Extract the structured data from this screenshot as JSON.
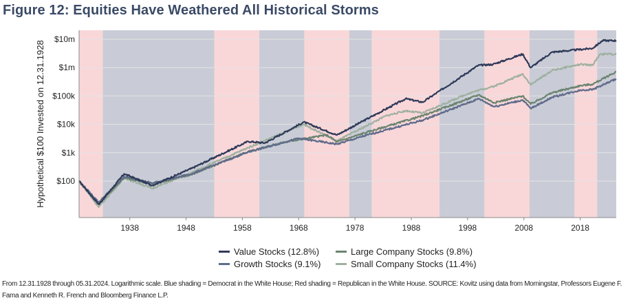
{
  "title": "Figure 12: Equities Have Weathered All Historical Storms",
  "chart_data": {
    "type": "line",
    "ylabel": "Hypothetical $100 Invested on 12.31.1928",
    "xlabel": "",
    "yscale": "log",
    "xlim": [
      1929.0,
      2024.4
    ],
    "ylim": [
      10,
      20000000
    ],
    "x_ticks": [
      1938,
      1948,
      1958,
      1968,
      1978,
      1988,
      1998,
      2008,
      2018
    ],
    "y_ticks": [
      {
        "value": 100,
        "label": "$100"
      },
      {
        "value": 1000,
        "label": "$1k"
      },
      {
        "value": 10000,
        "label": "$10k"
      },
      {
        "value": 100000,
        "label": "$100k"
      },
      {
        "value": 1000000,
        "label": "$1m"
      },
      {
        "value": 10000000,
        "label": "$10m"
      }
    ],
    "shading": [
      {
        "start": 1929.0,
        "end": 1933.2,
        "party": "Republican"
      },
      {
        "start": 1933.2,
        "end": 1953.0,
        "party": "Democrat"
      },
      {
        "start": 1953.0,
        "end": 1961.0,
        "party": "Republican"
      },
      {
        "start": 1961.0,
        "end": 1969.0,
        "party": "Democrat"
      },
      {
        "start": 1969.0,
        "end": 1977.0,
        "party": "Republican"
      },
      {
        "start": 1977.0,
        "end": 1981.0,
        "party": "Democrat"
      },
      {
        "start": 1981.0,
        "end": 1993.0,
        "party": "Republican"
      },
      {
        "start": 1993.0,
        "end": 2001.0,
        "party": "Democrat"
      },
      {
        "start": 2001.0,
        "end": 2009.0,
        "party": "Republican"
      },
      {
        "start": 2009.0,
        "end": 2017.0,
        "party": "Democrat"
      },
      {
        "start": 2017.0,
        "end": 2021.0,
        "party": "Republican"
      },
      {
        "start": 2021.0,
        "end": 2024.4,
        "party": "Democrat"
      }
    ],
    "colors": {
      "republican": "#f9d7d9",
      "democrat": "#c9ccd6",
      "grid": "#e3e3e3",
      "axis": "#888888"
    },
    "series": [
      {
        "name": "Value Stocks (12.8%)",
        "color": "#2f3a59",
        "points": [
          [
            1929,
            100
          ],
          [
            1932.5,
            15
          ],
          [
            1937,
            180
          ],
          [
            1942,
            70
          ],
          [
            1949,
            280
          ],
          [
            1959,
            2500
          ],
          [
            1962,
            2200
          ],
          [
            1968.9,
            12000
          ],
          [
            1974.8,
            4200
          ],
          [
            1980,
            15000
          ],
          [
            1987,
            80000
          ],
          [
            1990,
            60000
          ],
          [
            1999.9,
            1200000
          ],
          [
            2002.5,
            1300000
          ],
          [
            2007.8,
            3000000
          ],
          [
            2009.2,
            1000000
          ],
          [
            2013,
            3500000
          ],
          [
            2020.2,
            4800000
          ],
          [
            2022,
            9000000
          ],
          [
            2024.4,
            9000000
          ]
        ]
      },
      {
        "name": "Large Company Stocks (9.8%)",
        "color": "#6b8470",
        "points": [
          [
            1929,
            100
          ],
          [
            1932.5,
            16
          ],
          [
            1937,
            130
          ],
          [
            1942,
            80
          ],
          [
            1949,
            170
          ],
          [
            1959,
            1100
          ],
          [
            1966,
            2500
          ],
          [
            1973,
            4200
          ],
          [
            1974.8,
            2400
          ],
          [
            1980,
            5200
          ],
          [
            1990,
            20000
          ],
          [
            2000,
            110000
          ],
          [
            2002.7,
            58000
          ],
          [
            2007.8,
            100000
          ],
          [
            2009.2,
            52000
          ],
          [
            2013,
            130000
          ],
          [
            2018,
            230000
          ],
          [
            2020.2,
            260000
          ],
          [
            2024.4,
            720000
          ]
        ]
      },
      {
        "name": "Growth Stocks (9.1%)",
        "color": "#5f6b8a",
        "points": [
          [
            1929,
            100
          ],
          [
            1932.5,
            18
          ],
          [
            1937,
            145
          ],
          [
            1942,
            85
          ],
          [
            1949,
            180
          ],
          [
            1959,
            1050
          ],
          [
            1968,
            3200
          ],
          [
            1974.8,
            2000
          ],
          [
            1980,
            4100
          ],
          [
            1990,
            14000
          ],
          [
            2000,
            80000
          ],
          [
            2002.7,
            42000
          ],
          [
            2007.8,
            72000
          ],
          [
            2009.2,
            36000
          ],
          [
            2013,
            90000
          ],
          [
            2018,
            160000
          ],
          [
            2020.2,
            170000
          ],
          [
            2024.4,
            400000
          ]
        ]
      },
      {
        "name": "Small Company Stocks (11.4%)",
        "color": "#9fb0a1",
        "points": [
          [
            1929,
            100
          ],
          [
            1932.5,
            12
          ],
          [
            1937,
            130
          ],
          [
            1942,
            55
          ],
          [
            1949,
            200
          ],
          [
            1959,
            1500
          ],
          [
            1968.9,
            10000
          ],
          [
            1974.8,
            2600
          ],
          [
            1983.5,
            20000
          ],
          [
            1987,
            30000
          ],
          [
            1990,
            25000
          ],
          [
            1998,
            120000
          ],
          [
            2000,
            160000
          ],
          [
            2002.7,
            220000
          ],
          [
            2007.8,
            600000
          ],
          [
            2009.2,
            250000
          ],
          [
            2013,
            800000
          ],
          [
            2018,
            1300000
          ],
          [
            2020.2,
            1200000
          ],
          [
            2021.5,
            3000000
          ],
          [
            2024.4,
            3000000
          ]
        ]
      }
    ]
  },
  "legend": {
    "value": "Value Stocks (12.8%)",
    "large": "Large Company Stocks (9.8%)",
    "growth": "Growth Stocks (9.1%)",
    "small": "Small Company Stocks (11.4%)"
  },
  "footnote": "From 12.31.1928 through 05.31.2024. Logarithmic scale. Blue shading = Democrat in the White House; Red shading = Republican in the White House. SOURCE: Kovitz using data from Morningstar, Professors Eugene F. Fama and Kenneth R. French and Bloomberg Finance L.P."
}
